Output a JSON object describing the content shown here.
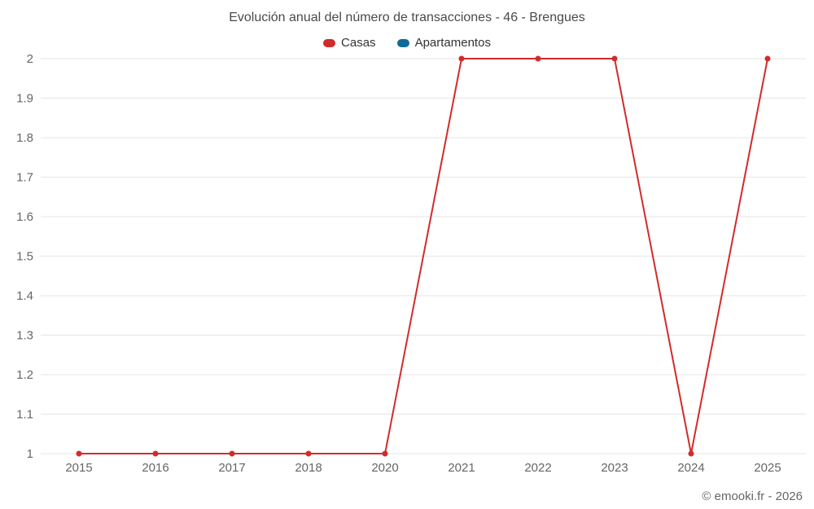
{
  "chart": {
    "title": "Evolución anual del número de transacciones - 46 - Brengues",
    "watermark": "© emooki.fr - 2026"
  },
  "chart_data": {
    "type": "line",
    "title": "Evolución anual del número de transacciones - 46 - Brengues",
    "categories": [
      "2015",
      "2016",
      "2017",
      "2018",
      "2020",
      "2021",
      "2022",
      "2023",
      "2024",
      "2025"
    ],
    "series": [
      {
        "name": "Casas",
        "color": "#d22b2b",
        "values": [
          1,
          1,
          1,
          1,
          1,
          2,
          2,
          2,
          1,
          2
        ]
      },
      {
        "name": "Apartamentos",
        "color": "#106a99",
        "values": []
      }
    ],
    "xlabel": "",
    "ylabel": "",
    "ylim": [
      1,
      2
    ],
    "ytick_step": 0.1,
    "grid": true,
    "grid_color": "#e6e6e6",
    "tick_label_color": "#666666",
    "title_color": "#4a4a4a",
    "legend_position": "top",
    "marker": "circle",
    "marker_radius": 3.5
  }
}
